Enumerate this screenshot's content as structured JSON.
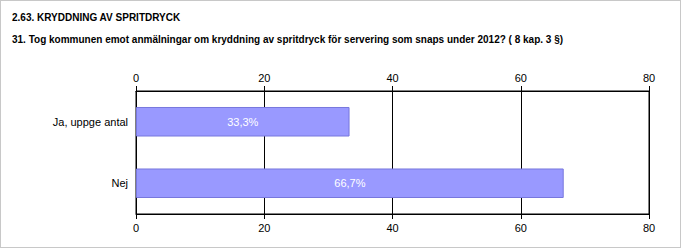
{
  "chart_data": {
    "type": "bar",
    "orientation": "horizontal",
    "title": "2.63. KRYDDNING AV SPRITDRYCK",
    "subtitle": "31. Tog kommunen emot anmälningar om kryddning av spritdryck för servering som snaps under 2012? ( 8 kap. 3 §)",
    "categories": [
      "Ja, uppge antal",
      "Nej"
    ],
    "values": [
      33.3,
      66.7
    ],
    "value_labels": [
      "33,3%",
      "66,7%"
    ],
    "color": "#9999ff",
    "xlim": [
      0,
      80
    ],
    "xticks": [
      0,
      20,
      40,
      60,
      80
    ],
    "grid": true,
    "data_labels": true
  }
}
